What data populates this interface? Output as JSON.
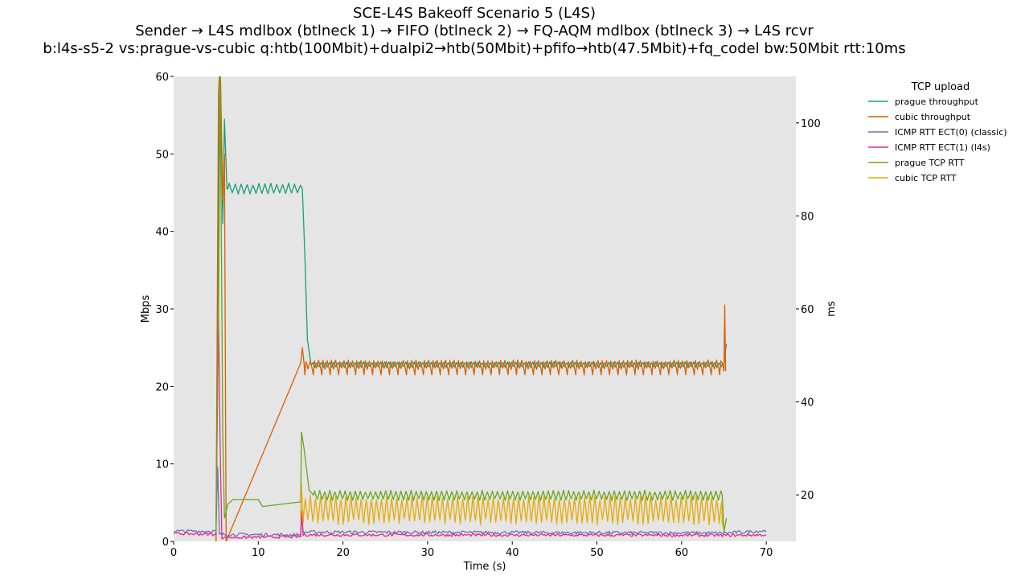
{
  "figure": {
    "title_lines": [
      "SCE-L4S Bakeoff Scenario 5 (L4S)",
      "Sender → L4S mdlbox (btlneck 1) → FIFO (btlneck 2) → FQ-AQM mdlbox (btlneck 3) → L4S rcvr",
      "b:l4s-s5-2 vs:prague-vs-cubic q:htb(100Mbit)+dualpi2→htb(50Mbit)+pfifo→htb(47.5Mbit)+fq_codel bw:50Mbit rtt:10ms"
    ]
  },
  "chart_data": {
    "type": "line",
    "title": "SCE-L4S Bakeoff Scenario 5 (L4S)",
    "xlabel": "Time (s)",
    "ylabel": "Mbps",
    "y2label": "ms",
    "xlim": [
      0,
      73.5
    ],
    "ylim": [
      0,
      60
    ],
    "y2lim": [
      10,
      110
    ],
    "xticks": [
      "0",
      "10",
      "20",
      "30",
      "40",
      "50",
      "60",
      "70"
    ],
    "yticks": [
      "0",
      "10",
      "20",
      "30",
      "40",
      "50",
      "60"
    ],
    "y2ticks": [
      "20",
      "40",
      "60",
      "80",
      "100"
    ],
    "grid": false,
    "background": "#e5e5e5",
    "legend": {
      "title": "TCP upload",
      "placement": "outside-right"
    },
    "series": [
      {
        "name": "prague throughput",
        "axis": "left",
        "color": "#1b9e77",
        "kind": "steady",
        "points": [
          [
            5.0,
            0
          ],
          [
            5.3,
            45
          ],
          [
            5.5,
            62
          ],
          [
            5.8,
            41
          ],
          [
            6.0,
            54.5
          ],
          [
            6.3,
            45.5
          ],
          [
            15.2,
            45.5
          ],
          [
            15.5,
            37
          ],
          [
            15.8,
            26
          ],
          [
            16.2,
            23
          ],
          [
            65.0,
            23
          ],
          [
            65.3,
            25.5
          ]
        ],
        "osc": [
          {
            "from": 6.4,
            "to": 15.0,
            "base": 45.5,
            "amp": 0.6,
            "period": 0.7
          },
          {
            "from": 16.3,
            "to": 64.8,
            "base": 22.8,
            "amp": 0.3,
            "period": 0.5
          }
        ]
      },
      {
        "name": "cubic throughput",
        "axis": "left",
        "color": "#d95f02",
        "kind": "steady",
        "points": [
          [
            5.0,
            0
          ],
          [
            5.3,
            58
          ],
          [
            5.5,
            62
          ],
          [
            5.8,
            44
          ],
          [
            6.0,
            50
          ],
          [
            6.2,
            0
          ],
          [
            15.0,
            23
          ],
          [
            15.2,
            25
          ],
          [
            15.4,
            23
          ],
          [
            64.8,
            23
          ],
          [
            65.0,
            22
          ],
          [
            65.1,
            30.5
          ],
          [
            65.2,
            22
          ]
        ],
        "osc": [
          {
            "from": 15.5,
            "to": 64.7,
            "base": 22.8,
            "amp": 0.5,
            "period": 0.5,
            "dips": {
              "every": 1.0,
              "depth": 1.3
            }
          }
        ]
      },
      {
        "name": "ICMP RTT ECT(0) (classic)",
        "axis": "right",
        "color": "#7570b3",
        "kind": "noise",
        "points": [
          [
            0,
            12.2
          ],
          [
            5.0,
            12.2
          ],
          [
            5.2,
            26
          ],
          [
            5.4,
            11.5
          ],
          [
            15.0,
            11.4
          ],
          [
            15.1,
            16.5
          ],
          [
            15.3,
            12.0
          ],
          [
            65.3,
            11.8
          ],
          [
            70.0,
            12.3
          ]
        ],
        "noise": {
          "from": 0,
          "to": 70,
          "step": 0.15,
          "amp": 0.35
        }
      },
      {
        "name": "ICMP RTT ECT(1) (l4s)",
        "axis": "right",
        "color": "#e7298a",
        "kind": "noise",
        "points": [
          [
            0,
            11.7
          ],
          [
            5.0,
            11.5
          ],
          [
            5.1,
            28.5
          ],
          [
            5.3,
            58
          ],
          [
            5.5,
            30
          ],
          [
            5.7,
            10.8
          ],
          [
            15.0,
            11.0
          ],
          [
            15.1,
            16.0
          ],
          [
            15.3,
            11.4
          ],
          [
            65.3,
            11.3
          ],
          [
            70.0,
            11.4
          ]
        ],
        "noise": {
          "from": 0,
          "to": 70,
          "step": 0.15,
          "amp": 0.3
        }
      },
      {
        "name": "prague TCP RTT",
        "axis": "right",
        "color": "#66a61e",
        "kind": "steady",
        "points": [
          [
            5.0,
            12
          ],
          [
            5.3,
            60
          ],
          [
            5.5,
            110
          ],
          [
            5.8,
            33
          ],
          [
            6.0,
            15
          ],
          [
            6.4,
            18
          ],
          [
            7.0,
            19
          ],
          [
            10.0,
            19
          ],
          [
            10.5,
            17.5
          ],
          [
            15.0,
            18.5
          ],
          [
            15.1,
            33.5
          ],
          [
            15.4,
            30
          ],
          [
            16.0,
            21
          ],
          [
            16.5,
            20
          ],
          [
            64.8,
            20
          ],
          [
            65.0,
            12
          ],
          [
            65.3,
            15
          ]
        ],
        "osc": [
          {
            "from": 16.5,
            "to": 64.8,
            "base": 19.9,
            "amp": 0.9,
            "period": 0.6
          }
        ]
      },
      {
        "name": "cubic TCP RTT",
        "axis": "right",
        "color": "#e6ab02",
        "kind": "steady",
        "points": [
          [
            15.0,
            15
          ],
          [
            15.1,
            22.5
          ],
          [
            15.3,
            14
          ],
          [
            64.8,
            14
          ],
          [
            65.0,
            12.5
          ]
        ],
        "osc": [
          {
            "from": 15.4,
            "to": 64.8,
            "base": 16.8,
            "amp": 2.6,
            "period": 0.6
          }
        ]
      }
    ]
  }
}
